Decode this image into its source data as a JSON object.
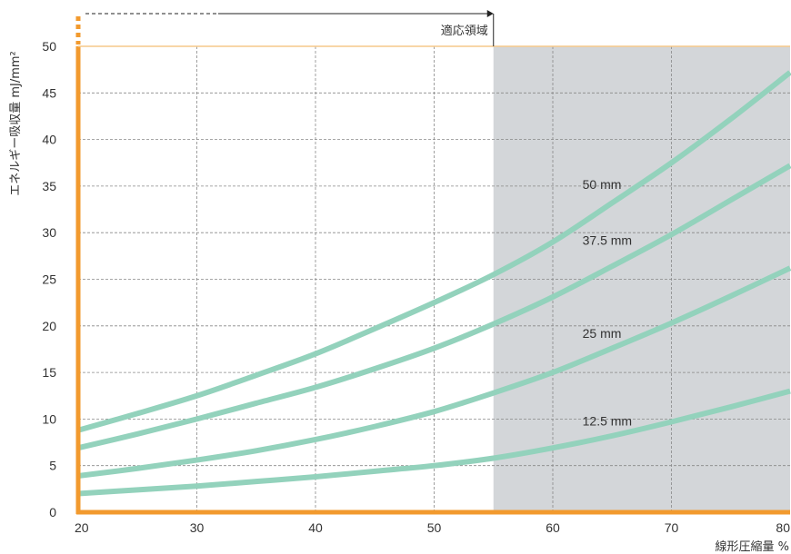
{
  "chart_data": {
    "type": "line",
    "xlabel": "線形圧縮量 %",
    "ylabel": "エネルギー吸収量 mJ/mm²",
    "xlim": [
      20,
      80
    ],
    "ylim": [
      0,
      50
    ],
    "xticks": [
      20,
      30,
      40,
      50,
      60,
      70,
      80
    ],
    "yticks": [
      0,
      5,
      10,
      15,
      20,
      25,
      30,
      35,
      40,
      45,
      50
    ],
    "grid": true,
    "region": {
      "label": "適応領域",
      "x_start": 55,
      "x_end": 80
    },
    "colors": {
      "line": "#93d2bc",
      "axis": "#f29a2e",
      "shade": "#d3d6d9",
      "grid": "#888888"
    },
    "x": [
      20,
      25,
      30,
      35,
      40,
      45,
      50,
      55,
      60,
      65,
      70,
      75,
      80
    ],
    "series": [
      {
        "name": "50 mm",
        "values": [
          8.8,
          10.6,
          12.5,
          14.7,
          17.0,
          19.7,
          22.5,
          25.5,
          29.0,
          33.2,
          37.5,
          42.2,
          47.2
        ]
      },
      {
        "name": "37.5 mm",
        "values": [
          6.9,
          8.4,
          10.0,
          11.7,
          13.4,
          15.4,
          17.6,
          20.2,
          23.1,
          26.4,
          29.8,
          33.5,
          37.2
        ]
      },
      {
        "name": "25 mm",
        "values": [
          3.9,
          4.7,
          5.6,
          6.6,
          7.8,
          9.2,
          10.8,
          12.8,
          15.0,
          17.6,
          20.3,
          23.2,
          26.2
        ]
      },
      {
        "name": "12.5 mm",
        "values": [
          2.0,
          2.4,
          2.8,
          3.3,
          3.8,
          4.4,
          5.0,
          5.8,
          6.9,
          8.2,
          9.7,
          11.3,
          13.0
        ]
      }
    ]
  }
}
